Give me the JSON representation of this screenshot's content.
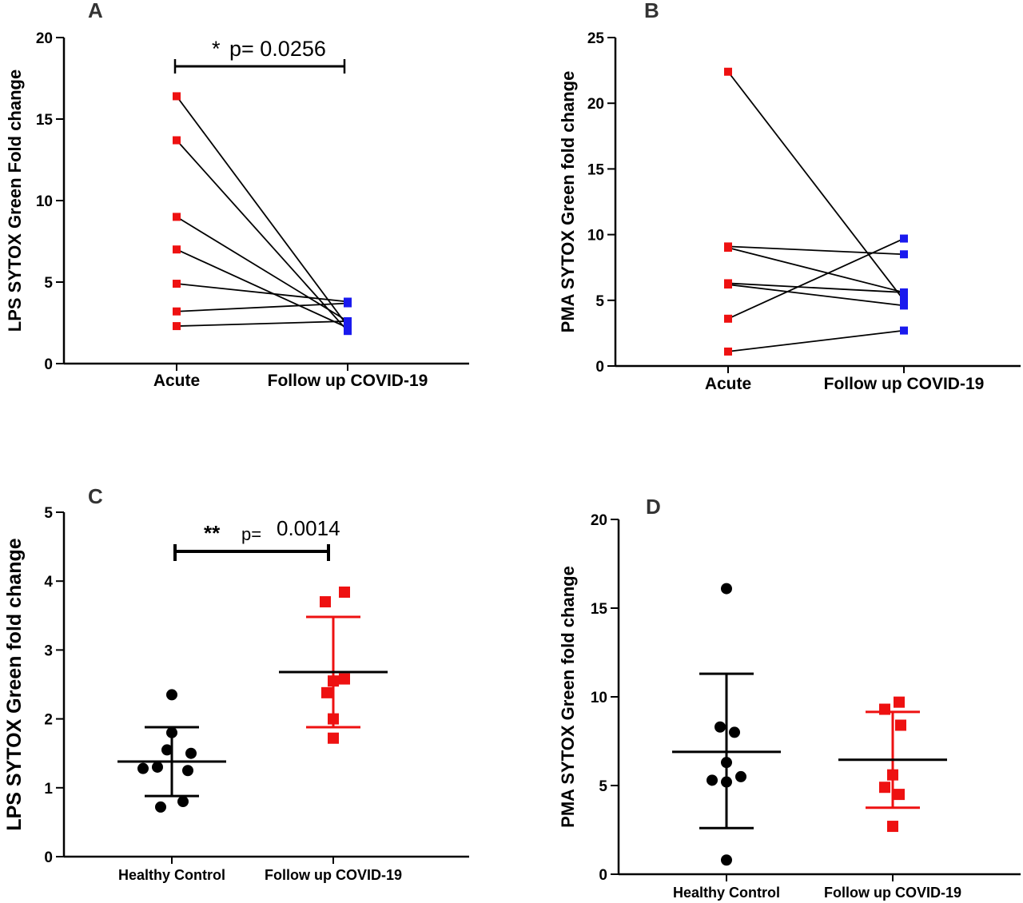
{
  "panels": {
    "A": {
      "letter": "A"
    },
    "B": {
      "letter": "B"
    },
    "C": {
      "letter": "C"
    },
    "D": {
      "letter": "D"
    }
  },
  "colors": {
    "acute": "#ee1111",
    "followup_blue": "#1a1aee",
    "healthy": "#000000",
    "followup_red": "#ee1111"
  },
  "chart_data": [
    {
      "panel": "A",
      "type": "scatter",
      "title": "",
      "categories": [
        "Acute",
        "Follow up COVID-19"
      ],
      "ylabel": "LPS SYTOX Green Fold change",
      "xlabel": "",
      "ylim": [
        0,
        20
      ],
      "yticks": [
        0,
        5,
        10,
        15,
        20
      ],
      "paired": true,
      "pairs": [
        [
          16.4,
          2.3
        ],
        [
          13.7,
          2.0
        ],
        [
          9.0,
          2.6
        ],
        [
          7.0,
          2.2
        ],
        [
          4.9,
          3.8
        ],
        [
          3.2,
          3.7
        ],
        [
          2.3,
          2.6
        ]
      ],
      "annotation": {
        "stars": "*",
        "text": "p= 0.0256"
      }
    },
    {
      "panel": "B",
      "type": "scatter",
      "title": "",
      "categories": [
        "Acute",
        "Follow up COVID-19"
      ],
      "ylabel": "PMA SYTOX Green fold change",
      "xlabel": "",
      "ylim": [
        0,
        25
      ],
      "yticks": [
        0,
        5,
        10,
        15,
        20,
        25
      ],
      "paired": true,
      "pairs": [
        [
          22.4,
          5.0
        ],
        [
          9.1,
          8.5
        ],
        [
          9.0,
          5.6
        ],
        [
          6.3,
          5.6
        ],
        [
          6.2,
          4.6
        ],
        [
          3.6,
          9.7
        ],
        [
          1.1,
          2.7
        ]
      ]
    },
    {
      "panel": "C",
      "type": "scatter",
      "title": "",
      "categories": [
        "Healthy Control",
        "Follow up COVID-19"
      ],
      "ylabel": "LPS SYTOX Green fold change",
      "xlabel": "",
      "ylim": [
        0,
        5
      ],
      "yticks": [
        0,
        1,
        2,
        3,
        4,
        5
      ],
      "series": [
        {
          "values": [
            2.35,
            1.8,
            1.55,
            1.5,
            1.3,
            1.28,
            1.25,
            0.8,
            0.72
          ],
          "mean": 1.38,
          "sd_low": 0.88,
          "sd_high": 1.88
        },
        {
          "values": [
            3.84,
            3.7,
            2.58,
            2.55,
            2.38,
            2.0,
            1.72
          ],
          "mean": 2.68,
          "sd_low": 1.88,
          "sd_high": 3.48
        }
      ],
      "annotation": {
        "stars": "**",
        "p_label": "p=",
        "p_value": "0.0014"
      }
    },
    {
      "panel": "D",
      "type": "scatter",
      "title": "",
      "categories": [
        "Healthy Control",
        "Follow up COVID-19"
      ],
      "ylabel": "PMA SYTOX Green fold change",
      "xlabel": "",
      "ylim": [
        0,
        20
      ],
      "yticks": [
        0,
        5,
        10,
        15,
        20
      ],
      "series": [
        {
          "values": [
            16.1,
            8.3,
            8.0,
            6.3,
            5.5,
            5.3,
            5.2,
            0.8
          ],
          "mean": 6.9,
          "sd_low": 2.6,
          "sd_high": 11.3
        },
        {
          "values": [
            9.7,
            9.3,
            8.4,
            5.6,
            4.9,
            4.5,
            2.7
          ],
          "mean": 6.45,
          "sd_low": 3.75,
          "sd_high": 9.15
        }
      ]
    }
  ]
}
